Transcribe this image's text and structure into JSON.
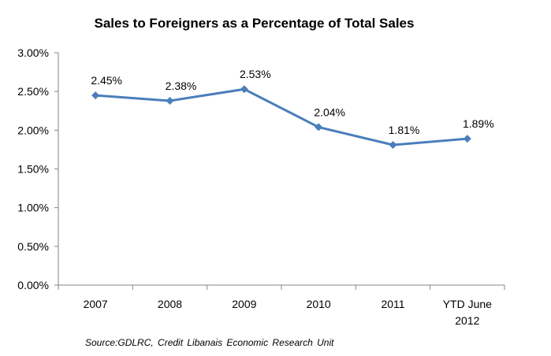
{
  "chart_data": {
    "type": "line",
    "title": "Sales to Foreigners as a Percentage of Total Sales",
    "categories": [
      "2007",
      "2008",
      "2009",
      "2010",
      "2011",
      "YTD June 2012"
    ],
    "category_lines": [
      [
        "2007"
      ],
      [
        "2008"
      ],
      [
        "2009"
      ],
      [
        "2010"
      ],
      [
        "2011"
      ],
      [
        "YTD June",
        "2012"
      ]
    ],
    "values": [
      2.45,
      2.38,
      2.53,
      2.04,
      1.81,
      1.89
    ],
    "data_labels": [
      "2.45%",
      "2.38%",
      "2.53%",
      "2.04%",
      "1.81%",
      "1.89%"
    ],
    "yticks": [
      0,
      0.5,
      1,
      1.5,
      2,
      2.5,
      3
    ],
    "ytick_labels": [
      "0.00%",
      "0.50%",
      "1.00%",
      "1.50%",
      "2.00%",
      "2.50%",
      "3.00%"
    ],
    "ylim": [
      0,
      3
    ],
    "xlabel": "",
    "ylabel": "",
    "grid": false,
    "marker": "diamond",
    "line_color": "#4a7ebb"
  },
  "source": "Source:GDLRC,  Credit Libanais  Economic Research  Unit"
}
